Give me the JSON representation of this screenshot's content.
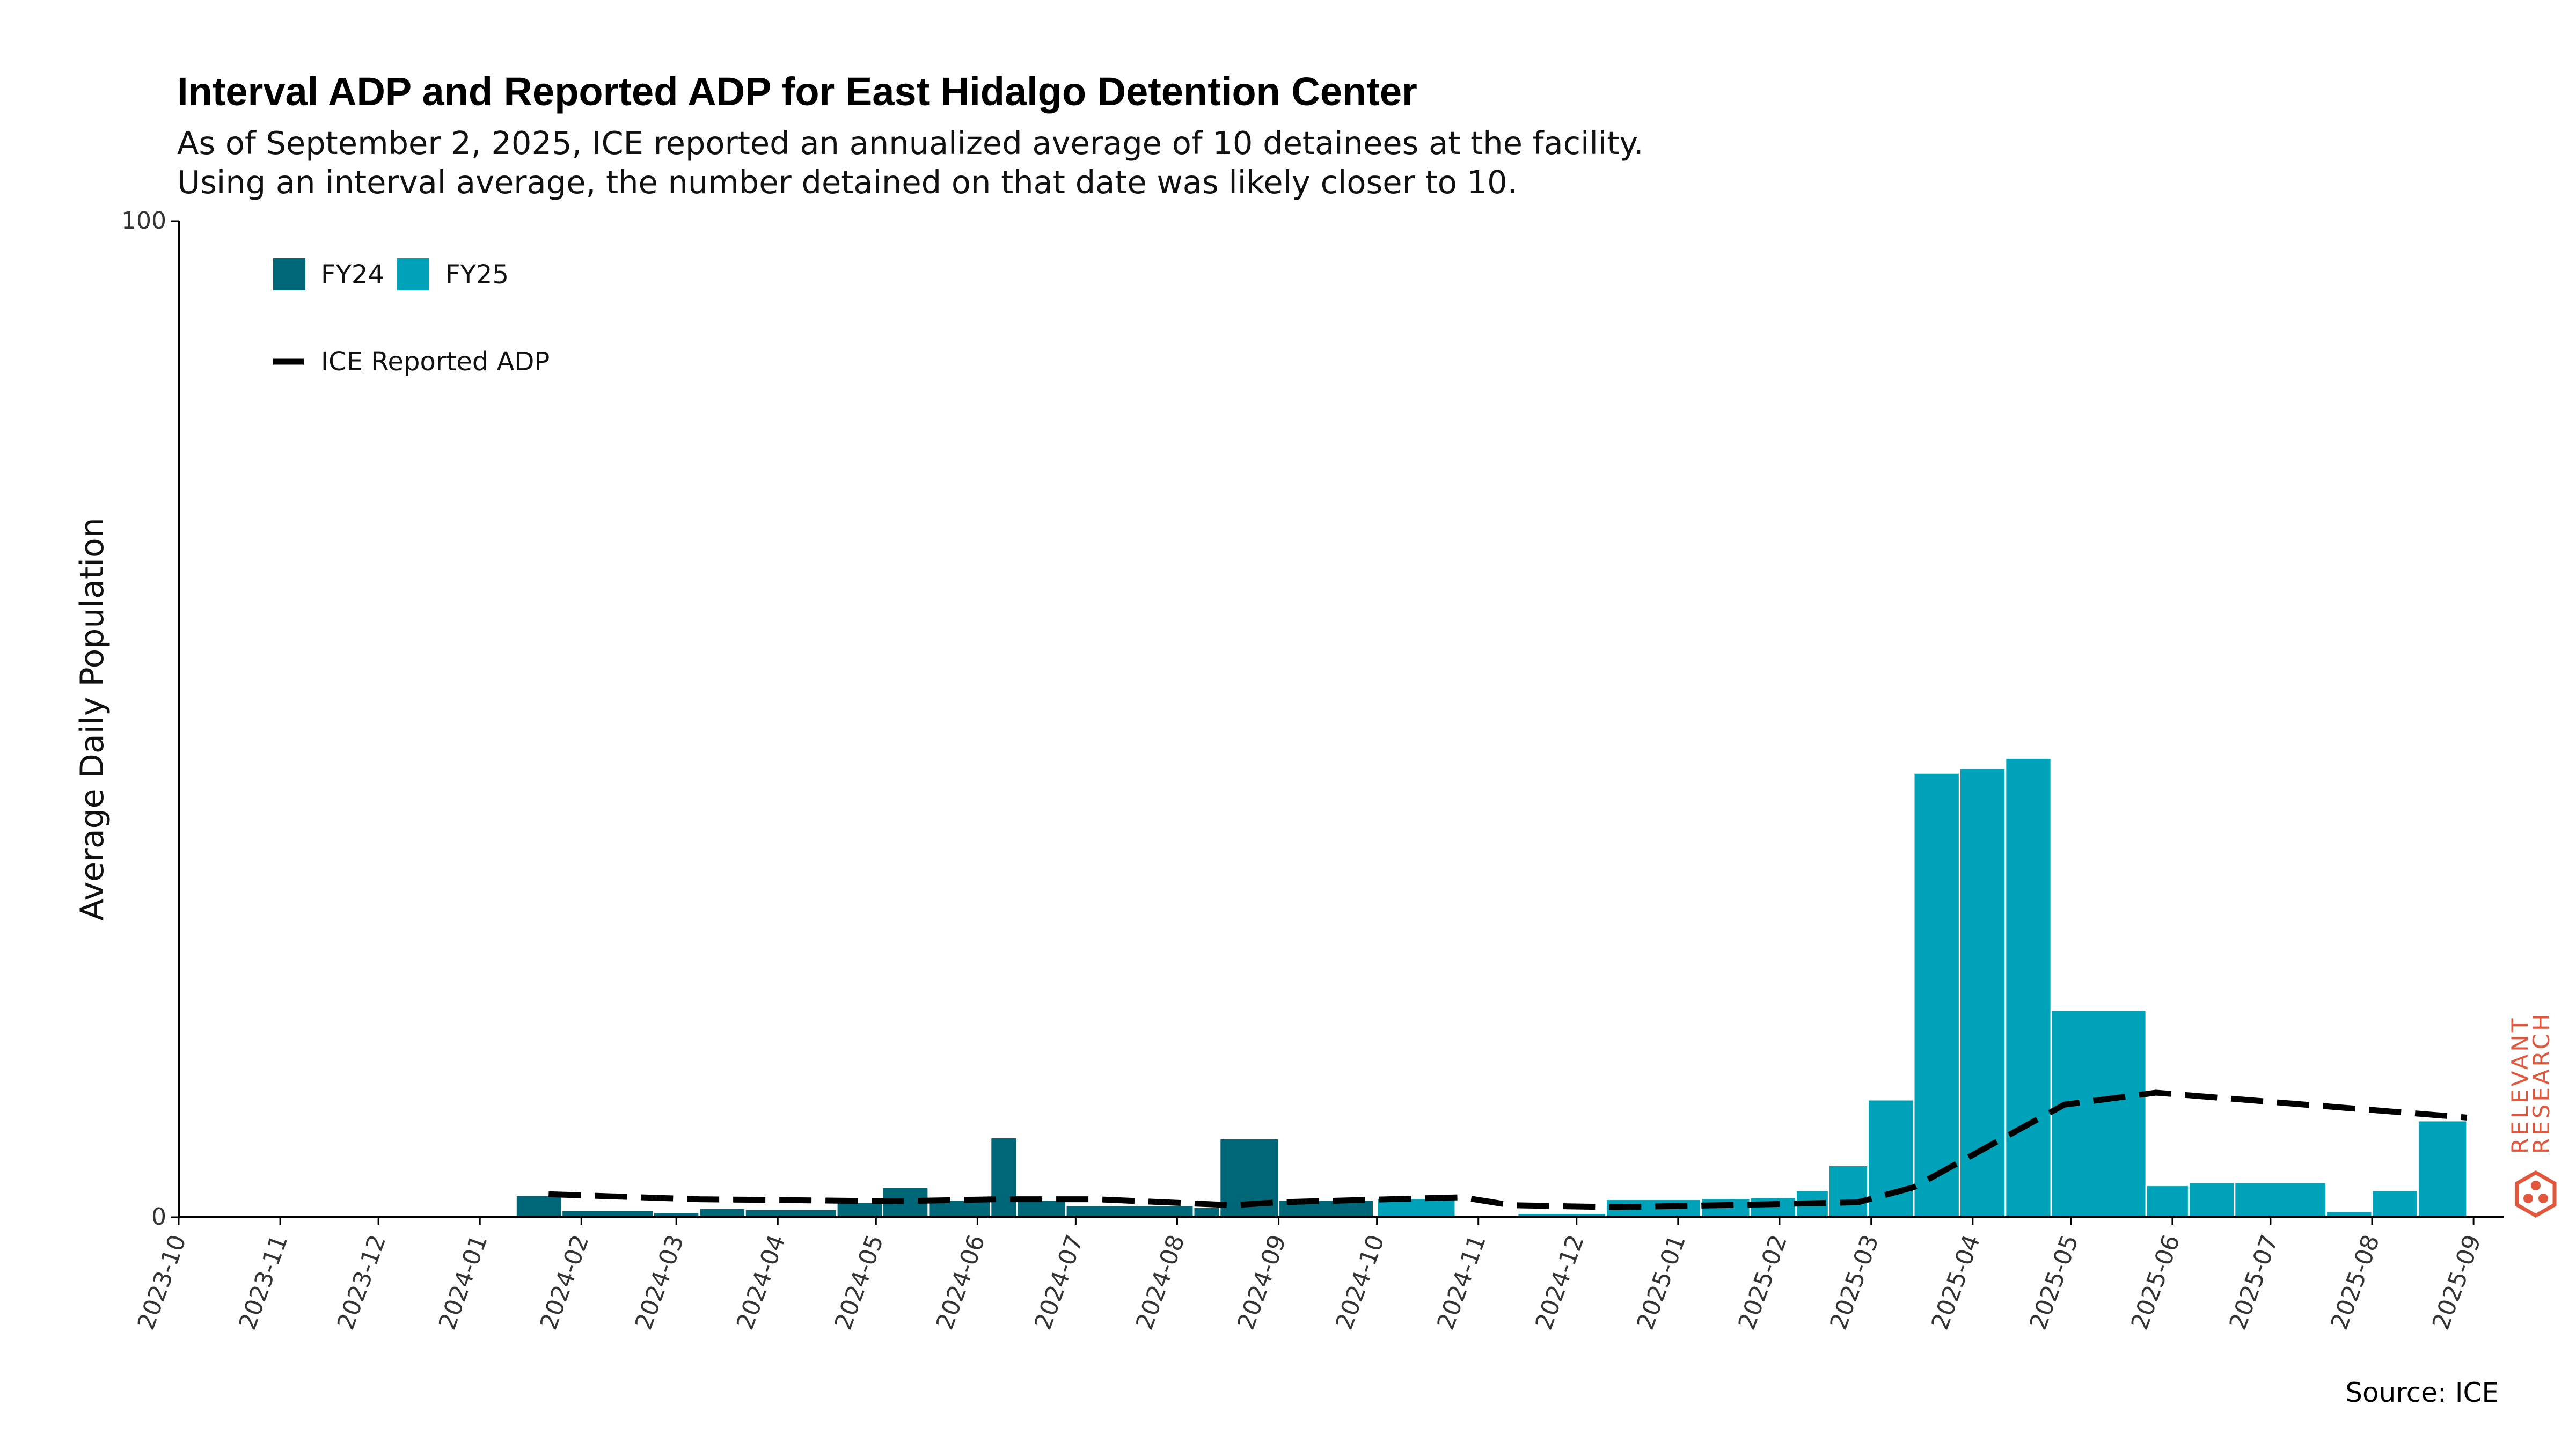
{
  "title": "Interval ADP and Reported ADP for East Hidalgo Detention Center",
  "subtitle_lines": [
    "As of September 2, 2025, ICE reported an annualized average of 10 detainees at the facility.",
    "Using an interval average, the number detained on that date was likely closer to 10."
  ],
  "source": "Source: ICE",
  "watermark": {
    "line1": "RELEVANT",
    "line2": "RESEARCH",
    "color": "#e2563b"
  },
  "colors": {
    "FY24": "#006778",
    "FY25": "#00a2b9",
    "line": "#000000",
    "axis": "#000000"
  },
  "chart_data": {
    "type": "bar",
    "ylabel": "Average Daily Population",
    "ylim": [
      0,
      100
    ],
    "yticks": [
      0,
      100
    ],
    "xlim": [
      "2023-10-01",
      "2025-09-30"
    ],
    "xticks": [
      "2023-10",
      "2023-11",
      "2023-12",
      "2024-01",
      "2024-02",
      "2024-03",
      "2024-04",
      "2024-05",
      "2024-06",
      "2024-07",
      "2024-08",
      "2024-09",
      "2024-10",
      "2024-11",
      "2024-12",
      "2025-01",
      "2025-02",
      "2025-03",
      "2025-04",
      "2025-05",
      "2025-06",
      "2025-07",
      "2025-08",
      "2025-09"
    ],
    "legend": {
      "placement": "top-left",
      "entries": [
        "FY24",
        "FY25"
      ],
      "line_entry": "ICE Reported ADP"
    },
    "series": [
      {
        "name": "FY24",
        "bars": [
          {
            "start": "2024-01-12",
            "end": "2024-01-26",
            "value": 2.2
          },
          {
            "start": "2024-01-26",
            "end": "2024-02-23",
            "value": 0.7
          },
          {
            "start": "2024-02-23",
            "end": "2024-03-08",
            "value": 0.5
          },
          {
            "start": "2024-03-08",
            "end": "2024-03-22",
            "value": 0.9
          },
          {
            "start": "2024-03-22",
            "end": "2024-04-19",
            "value": 0.8
          },
          {
            "start": "2024-04-19",
            "end": "2024-05-03",
            "value": 1.5
          },
          {
            "start": "2024-05-03",
            "end": "2024-05-17",
            "value": 3.0
          },
          {
            "start": "2024-05-17",
            "end": "2024-06-05",
            "value": 1.7
          },
          {
            "start": "2024-06-05",
            "end": "2024-06-13",
            "value": 8.0
          },
          {
            "start": "2024-06-13",
            "end": "2024-06-28",
            "value": 1.7
          },
          {
            "start": "2024-06-28",
            "end": "2024-08-06",
            "value": 1.2
          },
          {
            "start": "2024-08-06",
            "end": "2024-08-14",
            "value": 1.0
          },
          {
            "start": "2024-08-14",
            "end": "2024-09-01",
            "value": 7.9
          },
          {
            "start": "2024-09-01",
            "end": "2024-09-30",
            "value": 1.7
          }
        ]
      },
      {
        "name": "FY25",
        "bars": [
          {
            "start": "2024-10-01",
            "end": "2024-10-25",
            "value": 1.9
          },
          {
            "start": "2024-11-13",
            "end": "2024-12-10",
            "value": 0.4
          },
          {
            "start": "2024-12-10",
            "end": "2025-01-08",
            "value": 1.8
          },
          {
            "start": "2025-01-08",
            "end": "2025-01-23",
            "value": 1.9
          },
          {
            "start": "2025-01-23",
            "end": "2025-02-06",
            "value": 2.0
          },
          {
            "start": "2025-02-06",
            "end": "2025-02-16",
            "value": 2.7
          },
          {
            "start": "2025-02-16",
            "end": "2025-02-28",
            "value": 5.2
          },
          {
            "start": "2025-02-28",
            "end": "2025-03-14",
            "value": 11.8
          },
          {
            "start": "2025-03-14",
            "end": "2025-03-28",
            "value": 44.6
          },
          {
            "start": "2025-03-28",
            "end": "2025-04-11",
            "value": 45.1
          },
          {
            "start": "2025-04-11",
            "end": "2025-04-25",
            "value": 46.1
          },
          {
            "start": "2025-04-25",
            "end": "2025-05-24",
            "value": 20.8
          },
          {
            "start": "2025-05-24",
            "end": "2025-06-06",
            "value": 3.2
          },
          {
            "start": "2025-06-06",
            "end": "2025-06-20",
            "value": 3.5
          },
          {
            "start": "2025-06-20",
            "end": "2025-07-18",
            "value": 3.5
          },
          {
            "start": "2025-07-18",
            "end": "2025-08-01",
            "value": 0.6
          },
          {
            "start": "2025-08-01",
            "end": "2025-08-15",
            "value": 2.7
          },
          {
            "start": "2025-08-15",
            "end": "2025-08-30",
            "value": 9.7
          }
        ]
      }
    ],
    "line": {
      "name": "ICE Reported ADP",
      "points": [
        {
          "x": "2024-01-22",
          "y": 2.3
        },
        {
          "x": "2024-03-08",
          "y": 1.8
        },
        {
          "x": "2024-05-07",
          "y": 1.6
        },
        {
          "x": "2024-06-07",
          "y": 1.8
        },
        {
          "x": "2024-07-07",
          "y": 1.8
        },
        {
          "x": "2024-08-18",
          "y": 1.2
        },
        {
          "x": "2024-09-01",
          "y": 1.5
        },
        {
          "x": "2024-10-27",
          "y": 2.0
        },
        {
          "x": "2024-11-11",
          "y": 1.2
        },
        {
          "x": "2024-12-13",
          "y": 1.0
        },
        {
          "x": "2025-01-29",
          "y": 1.3
        },
        {
          "x": "2025-02-25",
          "y": 1.5
        },
        {
          "x": "2025-03-14",
          "y": 3.0
        },
        {
          "x": "2025-04-29",
          "y": 11.3
        },
        {
          "x": "2025-05-27",
          "y": 12.5
        },
        {
          "x": "2025-08-30",
          "y": 10.0
        }
      ]
    }
  }
}
